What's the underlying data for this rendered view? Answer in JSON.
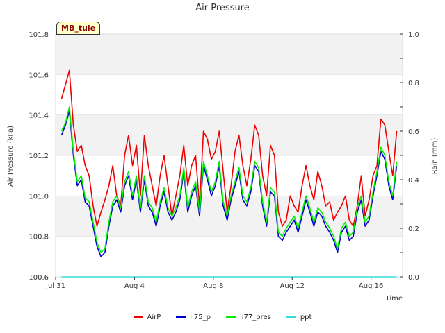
{
  "chart_data": {
    "type": "line",
    "title": "Air Pressure",
    "xlabel": "Time",
    "ylabel": "Air Pressure (kPa)",
    "y2label": "Rain (mm)",
    "site_label": "MB_tule",
    "ylim": [
      100.6,
      101.8
    ],
    "y2lim": [
      0.0,
      1.0
    ],
    "xlim": [
      0,
      17.6
    ],
    "x_ticks": [
      {
        "x": 0,
        "label": "Jul 31"
      },
      {
        "x": 4,
        "label": "Aug 4"
      },
      {
        "x": 8,
        "label": "Aug 8"
      },
      {
        "x": 12,
        "label": "Aug 12"
      },
      {
        "x": 16,
        "label": "Aug 16"
      }
    ],
    "y_ticks": [
      "100.6",
      "100.8",
      "101.0",
      "101.2",
      "101.4",
      "101.6",
      "101.8"
    ],
    "y2_ticks": [
      "0.0",
      "0.2",
      "0.4",
      "0.6",
      "0.8",
      "1.0"
    ],
    "grid": "horizontal bands",
    "legend_position": "bottom",
    "colors": {
      "AirP": "#ee0000",
      "li75_p": "#0000cc",
      "li77_pres": "#00ee00",
      "ppt": "#33dddd",
      "band": "#f2f2f2"
    },
    "x": [
      0.3,
      0.5,
      0.7,
      0.9,
      1.1,
      1.3,
      1.5,
      1.7,
      1.9,
      2.1,
      2.3,
      2.5,
      2.7,
      2.9,
      3.1,
      3.3,
      3.5,
      3.7,
      3.9,
      4.1,
      4.3,
      4.5,
      4.7,
      4.9,
      5.1,
      5.3,
      5.5,
      5.7,
      5.9,
      6.1,
      6.3,
      6.5,
      6.7,
      6.9,
      7.1,
      7.3,
      7.5,
      7.7,
      7.9,
      8.1,
      8.3,
      8.5,
      8.7,
      8.9,
      9.1,
      9.3,
      9.5,
      9.7,
      9.9,
      10.1,
      10.3,
      10.5,
      10.7,
      10.9,
      11.1,
      11.3,
      11.5,
      11.7,
      11.9,
      12.1,
      12.3,
      12.5,
      12.7,
      12.9,
      13.1,
      13.3,
      13.5,
      13.7,
      13.9,
      14.1,
      14.3,
      14.5,
      14.7,
      14.9,
      15.1,
      15.3,
      15.5,
      15.7,
      15.9,
      16.1,
      16.3,
      16.5,
      16.7,
      16.9,
      17.1,
      17.3
    ],
    "series": [
      {
        "name": "AirP",
        "values": [
          101.48,
          101.55,
          101.62,
          101.35,
          101.22,
          101.25,
          101.15,
          101.1,
          100.95,
          100.85,
          100.92,
          100.98,
          101.05,
          101.15,
          101.0,
          100.95,
          101.2,
          101.3,
          101.15,
          101.25,
          101.0,
          101.3,
          101.15,
          101.05,
          100.95,
          101.1,
          101.2,
          101.05,
          100.9,
          101.0,
          101.1,
          101.25,
          101.05,
          101.15,
          101.2,
          100.95,
          101.32,
          101.28,
          101.18,
          101.22,
          101.32,
          101.12,
          100.92,
          101.05,
          101.22,
          101.3,
          101.15,
          101.05,
          101.18,
          101.35,
          101.3,
          101.1,
          101.0,
          101.25,
          101.2,
          100.92,
          100.85,
          100.88,
          101.0,
          100.95,
          100.92,
          101.05,
          101.15,
          101.05,
          100.98,
          101.12,
          101.05,
          100.95,
          100.97,
          100.88,
          100.92,
          100.95,
          101.0,
          100.88,
          100.85,
          100.95,
          101.1,
          100.9,
          100.98,
          101.1,
          101.15,
          101.38,
          101.35,
          101.22,
          101.1,
          101.32
        ]
      },
      {
        "name": "li75_p",
        "values": [
          101.3,
          101.35,
          101.42,
          101.2,
          101.05,
          101.08,
          100.97,
          100.95,
          100.85,
          100.75,
          100.7,
          100.72,
          100.85,
          100.95,
          100.98,
          100.92,
          101.05,
          101.1,
          100.98,
          101.08,
          100.92,
          101.08,
          100.95,
          100.92,
          100.85,
          100.95,
          101.02,
          100.92,
          100.88,
          100.92,
          100.98,
          101.12,
          100.92,
          101.0,
          101.05,
          100.9,
          101.15,
          101.08,
          101.0,
          101.05,
          101.15,
          100.95,
          100.88,
          100.98,
          101.05,
          101.12,
          100.98,
          100.95,
          101.02,
          101.15,
          101.12,
          100.95,
          100.85,
          101.02,
          101.0,
          100.8,
          100.78,
          100.82,
          100.85,
          100.88,
          100.82,
          100.9,
          100.98,
          100.92,
          100.85,
          100.92,
          100.9,
          100.85,
          100.82,
          100.78,
          100.72,
          100.82,
          100.85,
          100.78,
          100.8,
          100.92,
          100.98,
          100.85,
          100.88,
          101.0,
          101.1,
          101.22,
          101.18,
          101.05,
          100.98,
          101.15
        ]
      },
      {
        "name": "li77_pres",
        "values": [
          101.32,
          101.36,
          101.44,
          101.22,
          101.07,
          101.1,
          100.99,
          100.97,
          100.87,
          100.77,
          100.72,
          100.74,
          100.87,
          100.97,
          101.0,
          100.94,
          101.07,
          101.12,
          101.0,
          101.1,
          100.94,
          101.1,
          100.97,
          100.94,
          100.87,
          100.97,
          101.04,
          100.94,
          100.9,
          100.94,
          101.0,
          101.14,
          100.94,
          101.02,
          101.07,
          100.92,
          101.17,
          101.1,
          101.02,
          101.07,
          101.17,
          100.97,
          100.9,
          101.0,
          101.07,
          101.14,
          101.0,
          100.97,
          101.04,
          101.17,
          101.14,
          100.97,
          100.87,
          101.04,
          101.02,
          100.82,
          100.8,
          100.84,
          100.87,
          100.9,
          100.84,
          100.92,
          101.0,
          100.94,
          100.87,
          100.94,
          100.92,
          100.87,
          100.84,
          100.8,
          100.74,
          100.84,
          100.87,
          100.8,
          100.82,
          100.94,
          101.0,
          100.87,
          100.9,
          101.02,
          101.12,
          101.24,
          101.2,
          101.07,
          101.0,
          101.17
        ]
      },
      {
        "name": "ppt",
        "axis": "right",
        "values": [
          0,
          0,
          0,
          0,
          0,
          0,
          0,
          0,
          0,
          0,
          0,
          0,
          0,
          0,
          0,
          0,
          0,
          0,
          0,
          0,
          0,
          0,
          0,
          0,
          0,
          0,
          0,
          0,
          0,
          0,
          0,
          0,
          0,
          0,
          0,
          0,
          0,
          0,
          0,
          0,
          0,
          0,
          0,
          0,
          0,
          0,
          0,
          0,
          0,
          0,
          0,
          0,
          0,
          0,
          0,
          0,
          0,
          0,
          0,
          0,
          0,
          0,
          0,
          0,
          0,
          0,
          0,
          0,
          0,
          0,
          0,
          0,
          0,
          0,
          0,
          0,
          0,
          0,
          0,
          0,
          0,
          0,
          0,
          0,
          0,
          0
        ]
      }
    ]
  }
}
